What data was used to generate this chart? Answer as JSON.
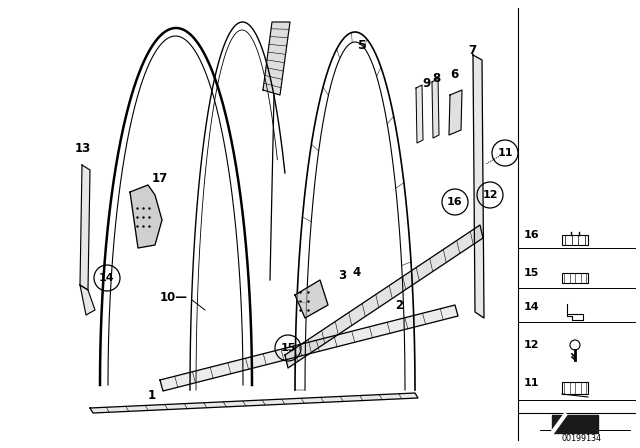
{
  "bg_color": "#ffffff",
  "diagram_number": "OO199134",
  "lw_main": 1.5,
  "lw_thin": 0.8,
  "lw_thick": 2.2
}
